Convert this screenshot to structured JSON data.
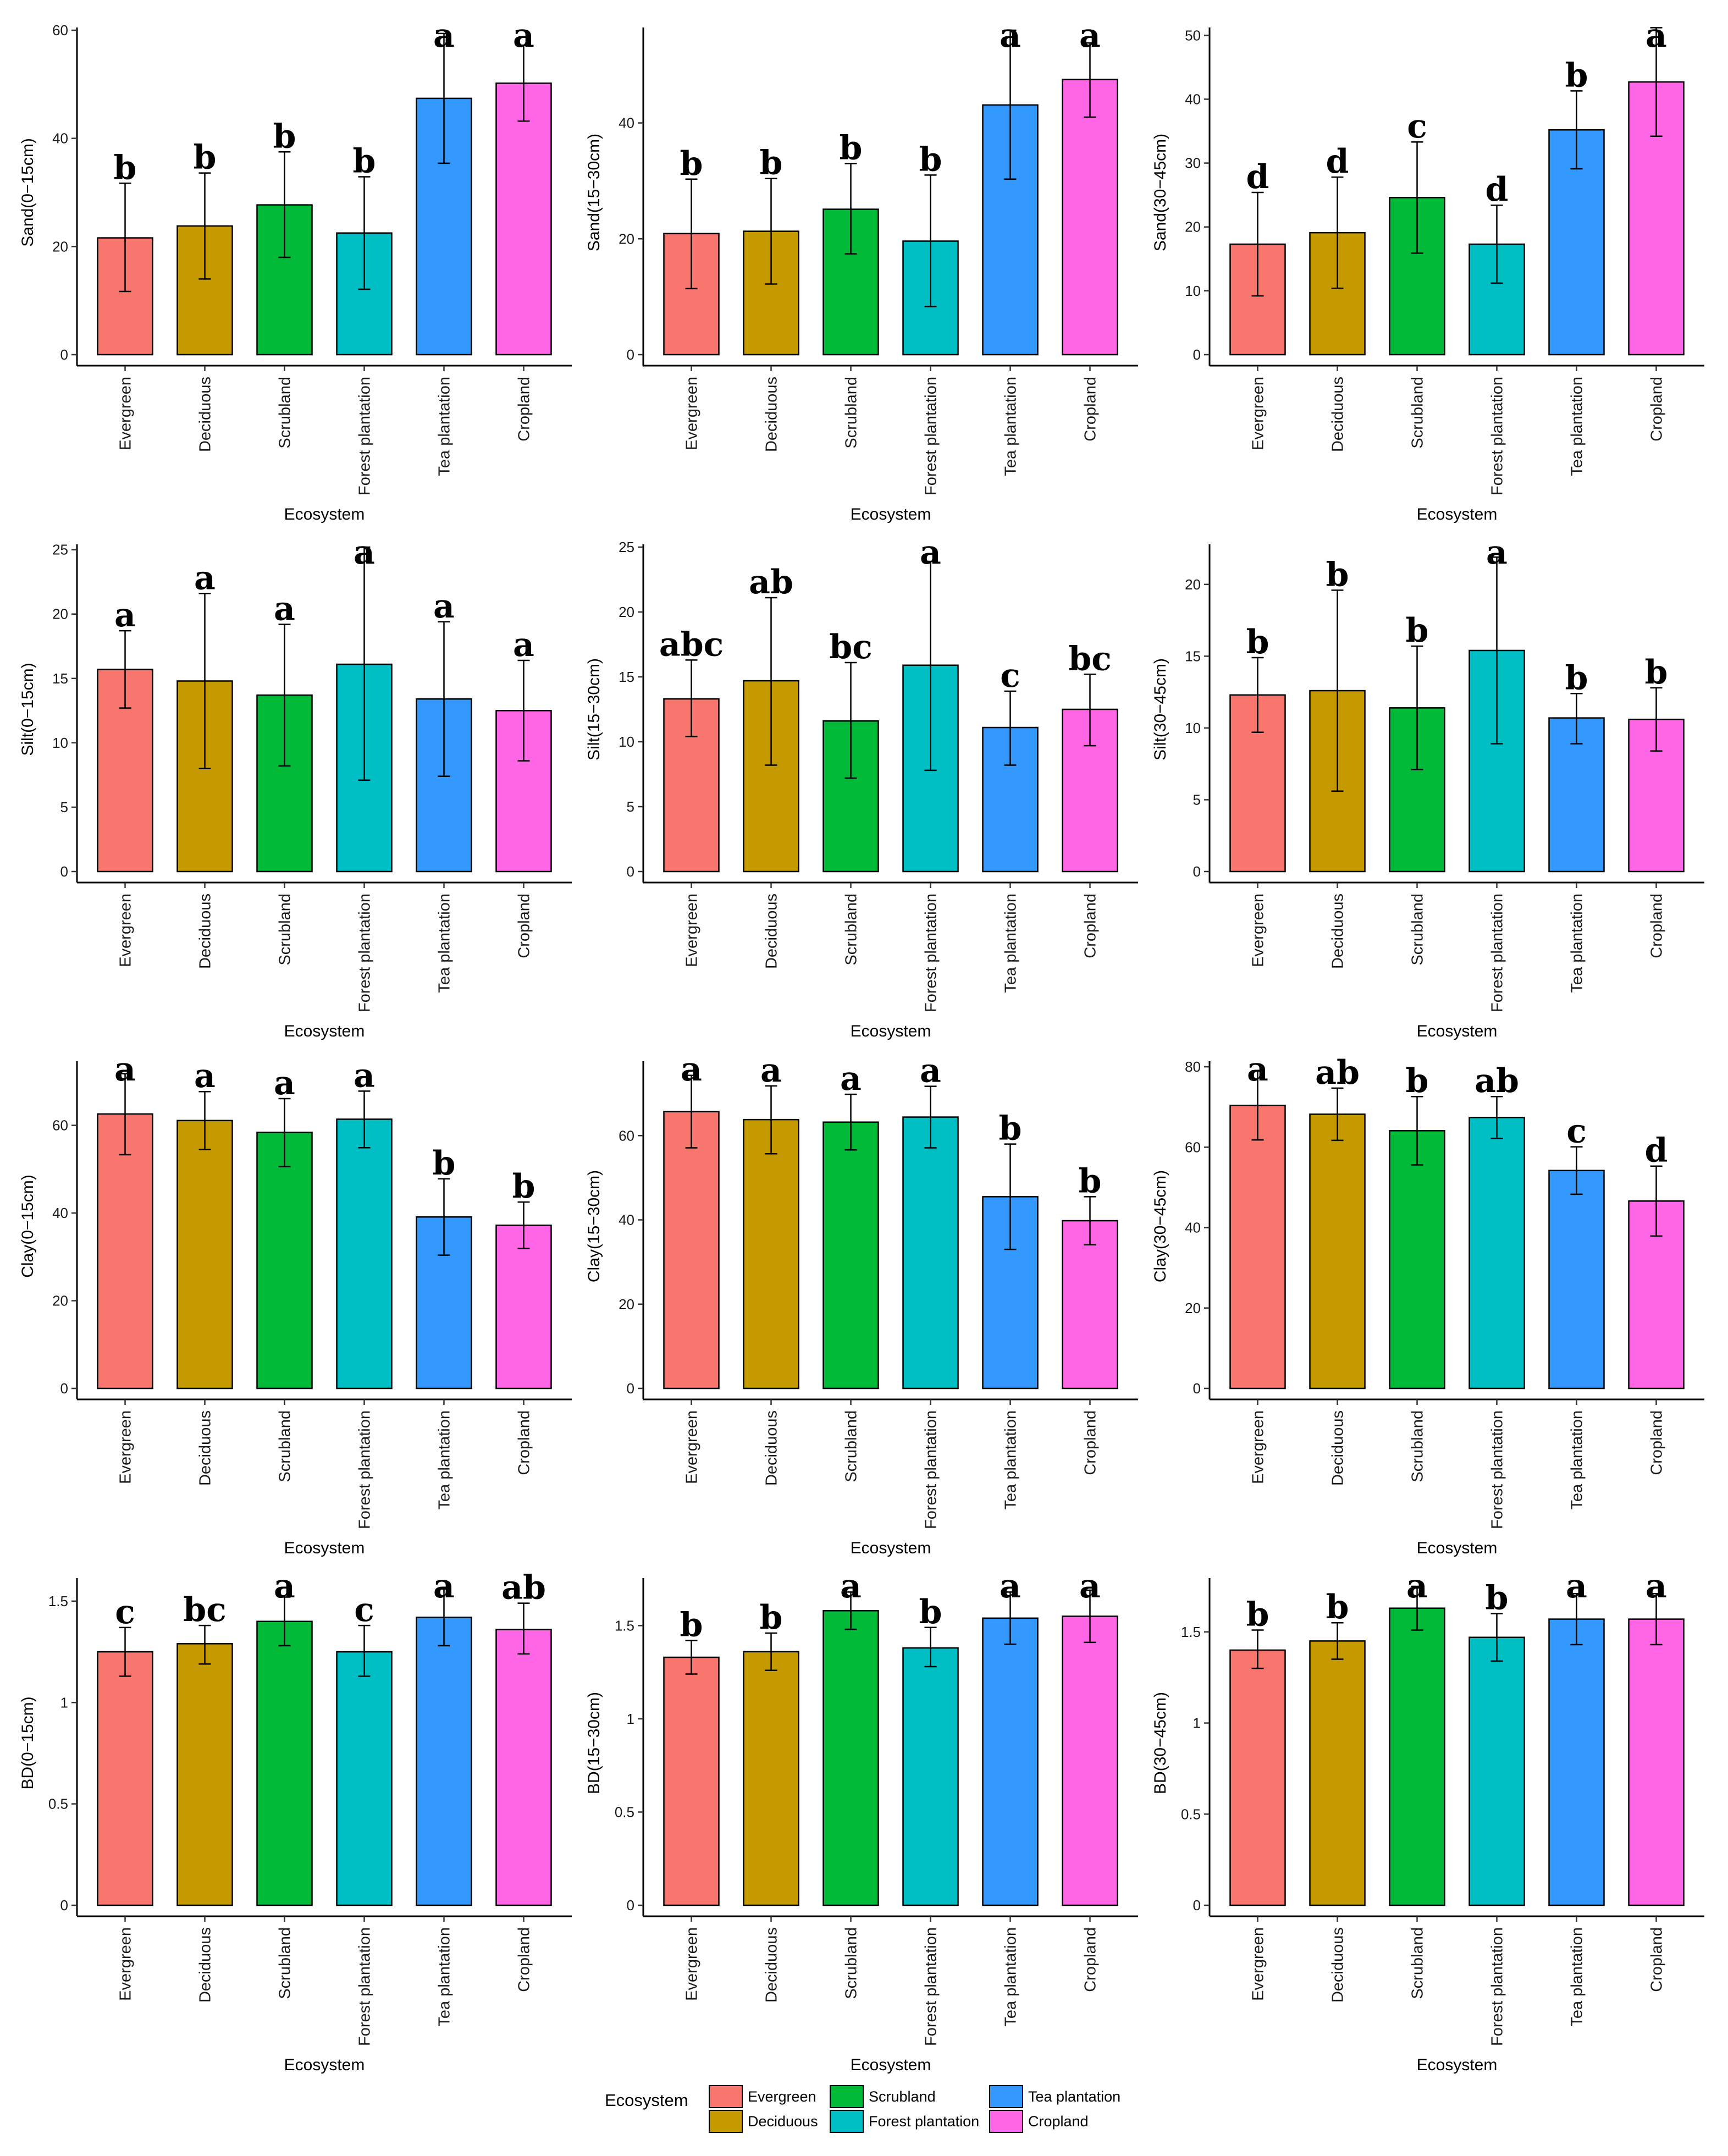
{
  "colors": {
    "Evergreen": "#F8766D",
    "Deciduous": "#C49A00",
    "Scrubland": "#00BA38",
    "Forest plantation": "#00BFC4",
    "Tea plantation": "#3399FF",
    "Cropland": "#FF66E6"
  },
  "legend": {
    "title": "Ecosystem",
    "items": [
      "Evergreen",
      "Deciduous",
      "Scrubland",
      "Forest plantation",
      "Tea plantation",
      "Cropland"
    ]
  },
  "chart_data": [
    {
      "type": "bar",
      "ylabel": "Sand(0−15cm)",
      "xlabel": "Ecosystem",
      "categories": [
        "Evergreen",
        "Deciduous",
        "Scrubland",
        "Forest plantation",
        "Tea plantation",
        "Cropland"
      ],
      "values": [
        21.6,
        23.8,
        27.7,
        22.5,
        47.4,
        50.2
      ],
      "err_low": [
        11.7,
        14.0,
        18.0,
        12.1,
        35.4,
        43.2
      ],
      "err_high": [
        31.7,
        33.6,
        37.5,
        32.9,
        59.4,
        57.2
      ],
      "letters": [
        "b",
        "b",
        "b",
        "b",
        "a",
        "a"
      ],
      "yticks": [
        0,
        20,
        40,
        60
      ],
      "ylim": [
        0,
        60
      ]
    },
    {
      "type": "bar",
      "ylabel": "Sand(15−30cm)",
      "xlabel": "Ecosystem",
      "categories": [
        "Evergreen",
        "Deciduous",
        "Scrubland",
        "Forest plantation",
        "Tea plantation",
        "Cropland"
      ],
      "values": [
        20.9,
        21.3,
        25.1,
        19.6,
        43.1,
        47.5
      ],
      "err_low": [
        11.4,
        12.2,
        17.4,
        8.3,
        30.3,
        41.0
      ],
      "err_high": [
        30.3,
        30.4,
        33.0,
        31.0,
        56.0,
        53.8
      ],
      "letters": [
        "b",
        "b",
        "b",
        "b",
        "a",
        "a"
      ],
      "yticks": [
        0,
        20,
        40
      ],
      "ylim": [
        0,
        56
      ]
    },
    {
      "type": "bar",
      "ylabel": "Sand(30−45cm)",
      "xlabel": "Ecosystem",
      "categories": [
        "Evergreen",
        "Deciduous",
        "Scrubland",
        "Forest plantation",
        "Tea plantation",
        "Cropland"
      ],
      "values": [
        17.3,
        19.1,
        24.6,
        17.3,
        35.2,
        42.7
      ],
      "err_low": [
        9.2,
        10.4,
        15.9,
        11.2,
        29.1,
        34.2
      ],
      "err_high": [
        25.4,
        27.8,
        33.3,
        23.4,
        41.3,
        51.2
      ],
      "letters": [
        "d",
        "d",
        "c",
        "d",
        "b",
        "a"
      ],
      "yticks": [
        0,
        10,
        20,
        30,
        40,
        50
      ],
      "ylim": [
        0,
        50.8
      ]
    },
    {
      "type": "bar",
      "ylabel": "Silt(0−15cm)",
      "xlabel": "Ecosystem",
      "categories": [
        "Evergreen",
        "Deciduous",
        "Scrubland",
        "Forest plantation",
        "Tea plantation",
        "Cropland"
      ],
      "values": [
        15.7,
        14.8,
        13.7,
        16.1,
        13.4,
        12.5
      ],
      "err_low": [
        12.7,
        8.0,
        8.2,
        7.1,
        7.4,
        8.6
      ],
      "err_high": [
        18.7,
        21.6,
        19.2,
        25.2,
        19.4,
        16.4
      ],
      "letters": [
        "a",
        "a",
        "a",
        "a",
        "a",
        "a"
      ],
      "yticks": [
        0,
        5,
        10,
        15,
        20,
        25
      ],
      "ylim": [
        0,
        25.2
      ]
    },
    {
      "type": "bar",
      "ylabel": "Silt(15−30cm)",
      "xlabel": "Ecosystem",
      "categories": [
        "Evergreen",
        "Deciduous",
        "Scrubland",
        "Forest plantation",
        "Tea plantation",
        "Cropland"
      ],
      "values": [
        13.3,
        14.7,
        11.6,
        15.9,
        11.1,
        12.5
      ],
      "err_low": [
        10.4,
        8.2,
        7.2,
        7.8,
        8.2,
        9.7
      ],
      "err_high": [
        16.3,
        21.1,
        16.1,
        23.9,
        13.9,
        15.2
      ],
      "letters": [
        "abc",
        "ab",
        "bc",
        "a",
        "c",
        "bc"
      ],
      "yticks": [
        0,
        5,
        10,
        15,
        20,
        25
      ],
      "ylim": [
        0,
        25
      ]
    },
    {
      "type": "bar",
      "ylabel": "Silt(30−45cm)",
      "xlabel": "Ecosystem",
      "categories": [
        "Evergreen",
        "Deciduous",
        "Scrubland",
        "Forest plantation",
        "Tea plantation",
        "Cropland"
      ],
      "values": [
        12.3,
        12.6,
        11.4,
        15.4,
        10.7,
        10.6
      ],
      "err_low": [
        9.7,
        5.6,
        7.1,
        8.9,
        8.9,
        8.4
      ],
      "err_high": [
        14.9,
        19.6,
        15.7,
        21.9,
        12.4,
        12.8
      ],
      "letters": [
        "b",
        "b",
        "b",
        "a",
        "b",
        "b"
      ],
      "yticks": [
        0,
        5,
        10,
        15,
        20
      ],
      "ylim": [
        0,
        22.6
      ]
    },
    {
      "type": "bar",
      "ylabel": "Clay(0−15cm)",
      "xlabel": "Ecosystem",
      "categories": [
        "Evergreen",
        "Deciduous",
        "Scrubland",
        "Forest plantation",
        "Tea plantation",
        "Cropland"
      ],
      "values": [
        62.6,
        61.1,
        58.4,
        61.4,
        39.1,
        37.2
      ],
      "err_low": [
        53.3,
        54.5,
        50.6,
        54.9,
        30.4,
        31.9
      ],
      "err_high": [
        71.8,
        67.7,
        66.1,
        67.8,
        47.8,
        42.5
      ],
      "letters": [
        "a",
        "a",
        "a",
        "a",
        "b",
        "b"
      ],
      "yticks": [
        0,
        20,
        40,
        60
      ],
      "ylim": [
        0,
        74
      ]
    },
    {
      "type": "bar",
      "ylabel": "Clay(15−30cm)",
      "xlabel": "Ecosystem",
      "categories": [
        "Evergreen",
        "Deciduous",
        "Scrubland",
        "Forest plantation",
        "Tea plantation",
        "Cropland"
      ],
      "values": [
        65.7,
        63.8,
        63.2,
        64.4,
        45.5,
        39.8
      ],
      "err_low": [
        57.1,
        55.7,
        56.6,
        57.1,
        33.0,
        34.1
      ],
      "err_high": [
        74.3,
        71.8,
        69.8,
        71.7,
        58.0,
        45.5
      ],
      "letters": [
        "a",
        "a",
        "a",
        "a",
        "b",
        "b"
      ],
      "yticks": [
        0,
        20,
        40,
        60
      ],
      "ylim": [
        0,
        77
      ]
    },
    {
      "type": "bar",
      "ylabel": "Clay(30−45cm)",
      "xlabel": "Ecosystem",
      "categories": [
        "Evergreen",
        "Deciduous",
        "Scrubland",
        "Forest plantation",
        "Tea plantation",
        "Cropland"
      ],
      "values": [
        70.4,
        68.2,
        64.1,
        67.4,
        54.2,
        46.6
      ],
      "err_low": [
        61.8,
        61.7,
        55.6,
        62.2,
        48.3,
        37.9
      ],
      "err_high": [
        79.0,
        74.7,
        72.6,
        72.6,
        60.1,
        55.3
      ],
      "letters": [
        "a",
        "ab",
        "b",
        "ab",
        "c",
        "d"
      ],
      "yticks": [
        0,
        20,
        40,
        60,
        80
      ],
      "ylim": [
        0,
        80.7
      ]
    },
    {
      "type": "bar",
      "ylabel": "BD(0−15cm)",
      "xlabel": "Ecosystem",
      "categories": [
        "Evergreen",
        "Deciduous",
        "Scrubland",
        "Forest plantation",
        "Tea plantation",
        "Cropland"
      ],
      "values": [
        1.25,
        1.29,
        1.4,
        1.25,
        1.42,
        1.36
      ],
      "err_low": [
        1.13,
        1.19,
        1.28,
        1.13,
        1.28,
        1.24
      ],
      "err_high": [
        1.37,
        1.38,
        1.52,
        1.38,
        1.56,
        1.49
      ],
      "letters": [
        "c",
        "bc",
        "a",
        "c",
        "a",
        "ab"
      ],
      "yticks": [
        0.0,
        0.5,
        1.0,
        1.5
      ],
      "ylim": [
        0,
        1.6
      ]
    },
    {
      "type": "bar",
      "ylabel": "BD(15−30cm)",
      "xlabel": "Ecosystem",
      "categories": [
        "Evergreen",
        "Deciduous",
        "Scrubland",
        "Forest plantation",
        "Tea plantation",
        "Cropland"
      ],
      "values": [
        1.33,
        1.36,
        1.58,
        1.38,
        1.54,
        1.55
      ],
      "err_low": [
        1.24,
        1.26,
        1.48,
        1.28,
        1.4,
        1.41
      ],
      "err_high": [
        1.42,
        1.46,
        1.68,
        1.49,
        1.68,
        1.69
      ],
      "letters": [
        "b",
        "b",
        "a",
        "b",
        "a",
        "a"
      ],
      "yticks": [
        0.0,
        0.5,
        1.0,
        1.5
      ],
      "ylim": [
        0,
        1.74
      ]
    },
    {
      "type": "bar",
      "ylabel": "BD(30−45cm)",
      "xlabel": "Ecosystem",
      "categories": [
        "Evergreen",
        "Deciduous",
        "Scrubland",
        "Forest plantation",
        "Tea plantation",
        "Cropland"
      ],
      "values": [
        1.4,
        1.45,
        1.63,
        1.47,
        1.57,
        1.57
      ],
      "err_low": [
        1.3,
        1.35,
        1.51,
        1.34,
        1.43,
        1.43
      ],
      "err_high": [
        1.51,
        1.55,
        1.75,
        1.6,
        1.71,
        1.71
      ],
      "letters": [
        "b",
        "b",
        "a",
        "b",
        "a",
        "a"
      ],
      "yticks": [
        0.0,
        0.5,
        1.0,
        1.5
      ],
      "ylim": [
        0,
        1.78
      ]
    }
  ]
}
